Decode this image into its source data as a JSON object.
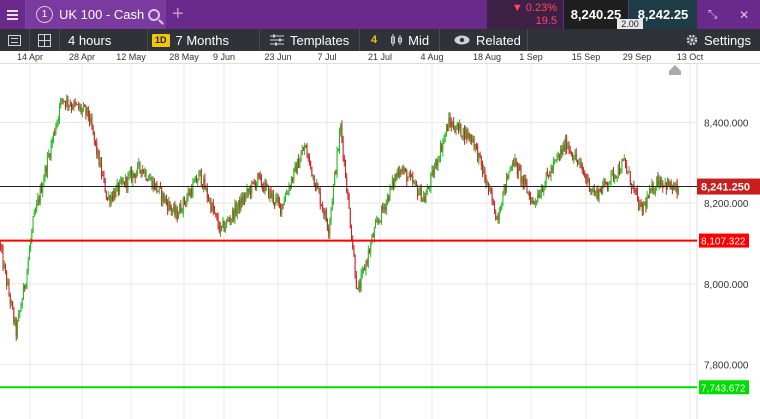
{
  "topbar": {
    "instrument_number": "1",
    "instrument_name": "UK 100 - Cash",
    "change_pct": "▼ 0.23%",
    "change_points": "19.5",
    "sell_price": "8,240.25",
    "buy_price": "8,242.25",
    "spread": "2.00",
    "icons": [
      "menu-icon",
      "search-icon",
      "add-tab-icon",
      "collapse-icon",
      "close-icon"
    ]
  },
  "toolbar": {
    "interval": "4 hours",
    "range_badge": "1D",
    "range": "7 Months",
    "templates": "Templates",
    "indicator_count": "4",
    "price_type": "Mid",
    "related": "Related",
    "settings": "Settings"
  },
  "chart_data": {
    "type": "candlestick",
    "x_ticks": [
      "14 Apr",
      "28 Apr",
      "12 May",
      "28 May",
      "9 Jun",
      "23 Jun",
      "7 Jul",
      "21 Jul",
      "4 Aug",
      "18 Aug",
      "1 Sep",
      "15 Sep",
      "29 Sep",
      "13 Oct"
    ],
    "y_ticks": [
      "8,400.000",
      "8,200.000",
      "8,000.000",
      "7,800.000"
    ],
    "y_tick_values": [
      8400,
      8200,
      8000,
      7800
    ],
    "ylim": [
      7665,
      8545
    ],
    "current_price": 8241.25,
    "current_price_label": "8,241.250",
    "horizontal_lines": [
      {
        "label": "8,107.322",
        "value": 8107.322,
        "color": "#ff0000"
      },
      {
        "label": "7,743.672",
        "value": 7743.672,
        "color": "#00dd00"
      }
    ],
    "up_color": "#22bb22",
    "down_color": "#cc2222",
    "close_path": [
      [
        8100,
        0
      ],
      [
        7880,
        14
      ],
      [
        8015,
        22
      ],
      [
        8150,
        28
      ],
      [
        8460,
        52
      ],
      [
        8420,
        74
      ],
      [
        8210,
        90
      ],
      [
        8290,
        118
      ],
      [
        8170,
        147
      ],
      [
        8270,
        167
      ],
      [
        8130,
        184
      ],
      [
        8260,
        215
      ],
      [
        8190,
        234
      ],
      [
        8340,
        254
      ],
      [
        8140,
        274
      ],
      [
        8390,
        284
      ],
      [
        7975,
        298
      ],
      [
        8130,
        312
      ],
      [
        8290,
        333
      ],
      [
        8210,
        354
      ],
      [
        8400,
        374
      ],
      [
        8360,
        394
      ],
      [
        8165,
        414
      ],
      [
        8310,
        427
      ],
      [
        8200,
        444
      ],
      [
        8350,
        472
      ],
      [
        8220,
        496
      ],
      [
        8300,
        520
      ],
      [
        8180,
        534
      ],
      [
        8260,
        548
      ],
      [
        8230,
        564
      ]
    ]
  }
}
